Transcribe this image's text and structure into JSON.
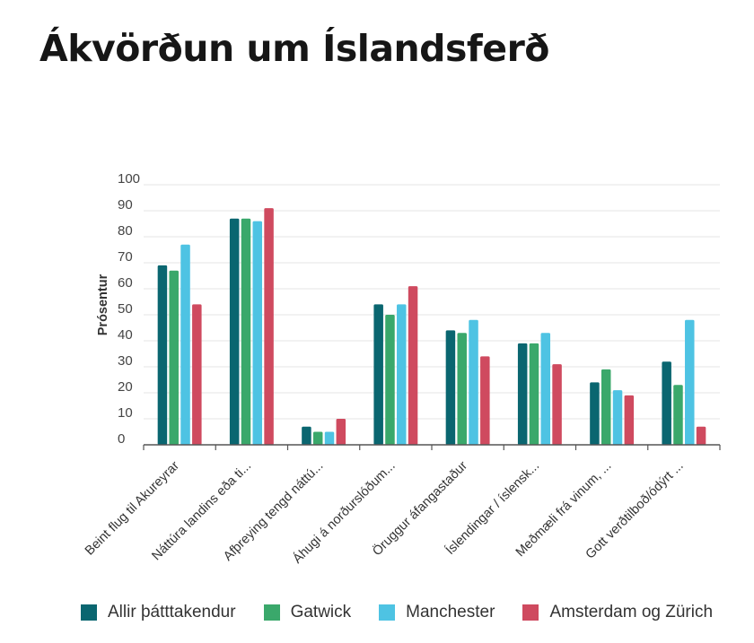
{
  "title": "Ákvörðun um Íslandsferð",
  "chart_data": {
    "type": "bar",
    "title": "Ákvörðun um Íslandsferð",
    "ylabel": "Prósentur",
    "xlabel": "",
    "ylim": [
      0,
      100
    ],
    "yticks": [
      0,
      10,
      20,
      30,
      40,
      50,
      60,
      70,
      80,
      90,
      100
    ],
    "grid": true,
    "legend_position": "bottom",
    "categories": [
      "Beint flug til Akureyrar",
      "Náttúra landins eða ti...",
      "Afþreying tengd náttú...",
      "Áhugi á norðurslóðum...",
      "Öruggur áfangastaður",
      "Íslendingar / íslensk...",
      "Meðmæli frá vinum, ...",
      "Gott verðtilboð/ódýrt ..."
    ],
    "series": [
      {
        "name": "Allir þátttakendur",
        "color": "#0a6670",
        "values": [
          69,
          87,
          7,
          54,
          44,
          39,
          24,
          32
        ]
      },
      {
        "name": "Gatwick",
        "color": "#3aa86b",
        "values": [
          67,
          87,
          5,
          50,
          43,
          39,
          29,
          23
        ]
      },
      {
        "name": "Manchester",
        "color": "#4ec3e3",
        "values": [
          77,
          86,
          5,
          54,
          48,
          43,
          21,
          48
        ]
      },
      {
        "name": "Amsterdam og Zürich",
        "color": "#cf4a5f",
        "values": [
          54,
          91,
          10,
          61,
          34,
          31,
          19,
          7
        ]
      }
    ]
  }
}
